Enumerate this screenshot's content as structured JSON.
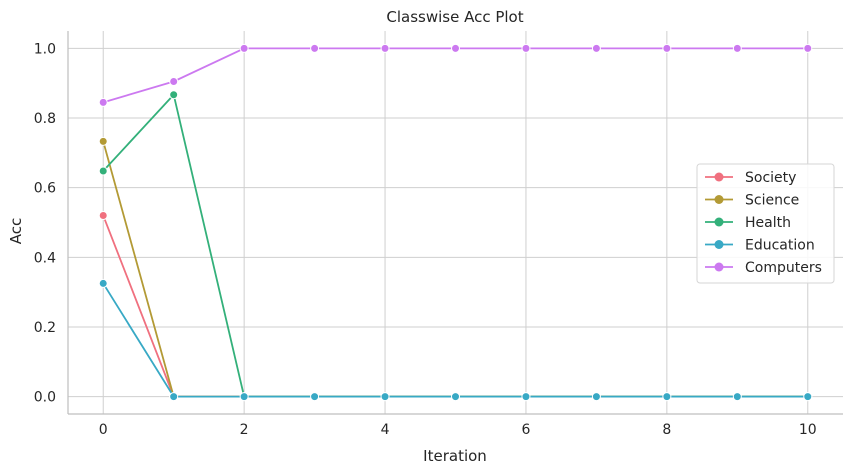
{
  "chart_data": {
    "type": "line",
    "title": "Classwise Acc Plot",
    "xlabel": "Iteration",
    "ylabel": "Acc",
    "xlim": [
      -0.5,
      10.5
    ],
    "ylim": [
      -0.05,
      1.05
    ],
    "x_ticks": [
      0,
      2,
      4,
      6,
      8,
      10
    ],
    "y_ticks": [
      0.0,
      0.2,
      0.4,
      0.6,
      0.8,
      1.0
    ],
    "grid": true,
    "legend_position": "center-right",
    "x": [
      0,
      1,
      2,
      3,
      4,
      5,
      6,
      7,
      8,
      9,
      10
    ],
    "series": [
      {
        "name": "Society",
        "color": "#f0707f",
        "values": [
          0.52,
          0.0,
          0.0,
          0.0,
          0.0,
          0.0,
          0.0,
          0.0,
          0.0,
          0.0,
          0.0
        ]
      },
      {
        "name": "Science",
        "color": "#b39a35",
        "values": [
          0.733,
          0.0,
          0.0,
          0.0,
          0.0,
          0.0,
          0.0,
          0.0,
          0.0,
          0.0,
          0.0
        ]
      },
      {
        "name": "Health",
        "color": "#33b07a",
        "values": [
          0.648,
          0.867,
          0.0,
          0.0,
          0.0,
          0.0,
          0.0,
          0.0,
          0.0,
          0.0,
          0.0
        ]
      },
      {
        "name": "Education",
        "color": "#38a9c5",
        "values": [
          0.325,
          0.0,
          0.0,
          0.0,
          0.0,
          0.0,
          0.0,
          0.0,
          0.0,
          0.0,
          0.0
        ]
      },
      {
        "name": "Computers",
        "color": "#cc79f0",
        "values": [
          0.845,
          0.905,
          1.0,
          1.0,
          1.0,
          1.0,
          1.0,
          1.0,
          1.0,
          1.0,
          1.0
        ]
      }
    ]
  }
}
